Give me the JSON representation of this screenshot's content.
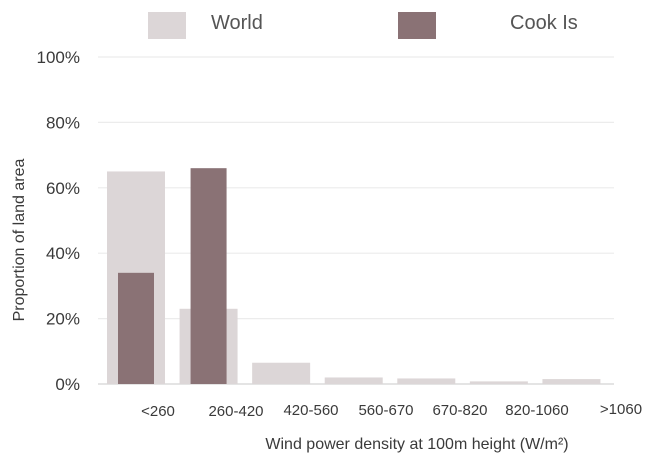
{
  "chart_data": {
    "type": "bar",
    "title": "",
    "xlabel": "Wind power density at 100m height (W/m²)",
    "ylabel": "Proportion of land area",
    "categories": [
      "<260",
      "260-420",
      "420-560",
      "560-670",
      "670-820",
      "820-1060",
      ">1060"
    ],
    "ylim": [
      0,
      100
    ],
    "yticks": [
      "0%",
      "20%",
      "40%",
      "60%",
      "80%",
      "100%"
    ],
    "grid": true,
    "legend_position": "top",
    "series": [
      {
        "name": "World",
        "color": "#dcd6d7",
        "values": [
          65,
          23,
          6.5,
          2,
          1.7,
          0.8,
          1.5
        ]
      },
      {
        "name": "Cook Is",
        "color": "#8a7275",
        "values": [
          34,
          66,
          0,
          0,
          0,
          0,
          0
        ]
      }
    ]
  }
}
